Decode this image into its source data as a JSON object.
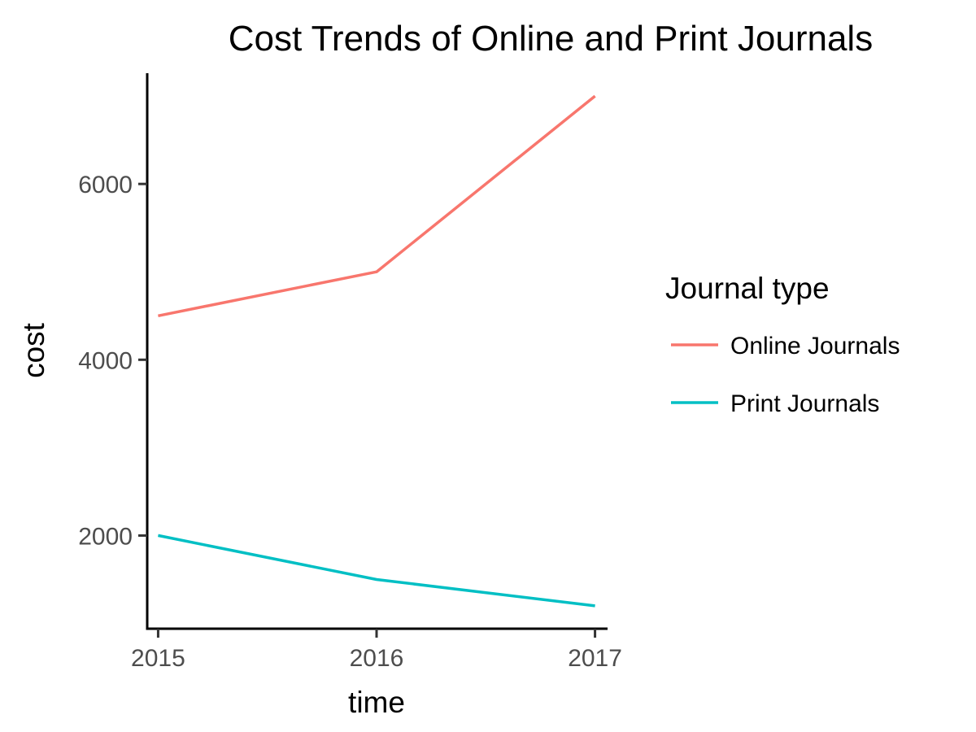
{
  "chart_data": {
    "type": "line",
    "title": "Cost Trends of Online and Print Journals",
    "xlabel": "time",
    "ylabel": "cost",
    "x": [
      2015,
      2016,
      2017
    ],
    "x_tick_labels": [
      "2015",
      "2016",
      "2017"
    ],
    "y_ticks": [
      2000,
      4000,
      6000
    ],
    "y_tick_labels": [
      "2000",
      "4000",
      "6000"
    ],
    "xlim": [
      2014.95,
      2017.05
    ],
    "ylim": [
      940,
      7260
    ],
    "grid": false,
    "legend": {
      "title": "Journal type",
      "placement": "right"
    },
    "series": [
      {
        "name": "Online Journals",
        "color": "#f8766d",
        "values": [
          4500,
          5000,
          7000
        ]
      },
      {
        "name": "Print Journals",
        "color": "#00bfc4",
        "values": [
          2000,
          1500,
          1200
        ]
      }
    ]
  }
}
